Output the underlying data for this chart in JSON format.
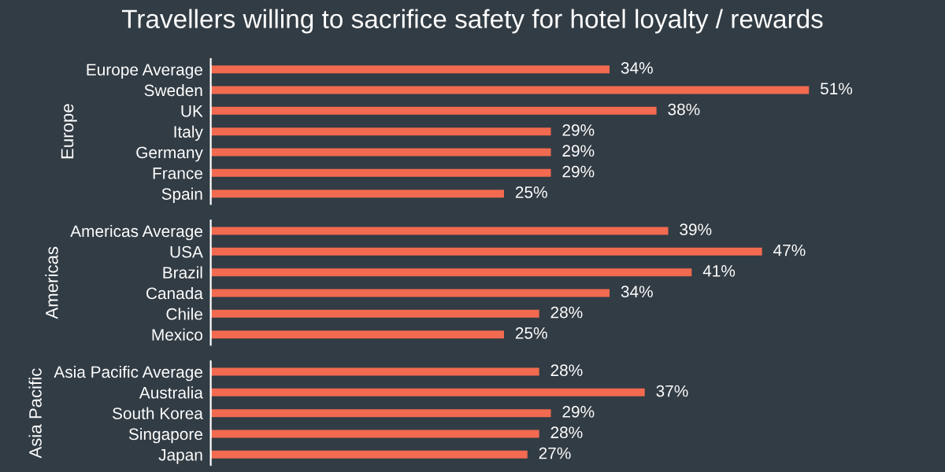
{
  "chart_data": [
    {
      "type": "bar",
      "orientation": "horizontal",
      "title": "Travellers willing to sacrifice safety for hotel loyalty / rewards",
      "ylabel": "Europe",
      "tick_labels": "y",
      "color": "#f26a50",
      "categories": [
        "Europe Average",
        "Sweden",
        "UK",
        "Italy",
        "Germany",
        "France",
        "Spain"
      ],
      "values": [
        34,
        51,
        38,
        29,
        29,
        29,
        25
      ],
      "value_labels": [
        "34%",
        "51%",
        "38%",
        "29%",
        "29%",
        "29%",
        "25%"
      ]
    },
    {
      "type": "bar",
      "orientation": "horizontal",
      "ylabel": "Americas",
      "tick_labels": "y",
      "color": "#f26a50",
      "categories": [
        "Americas Average",
        "USA",
        "Brazil",
        "Canada",
        "Chile",
        "Mexico"
      ],
      "values": [
        39,
        47,
        41,
        34,
        28,
        25
      ],
      "value_labels": [
        "39%",
        "47%",
        "41%",
        "34%",
        "28%",
        "25%"
      ]
    },
    {
      "type": "bar",
      "orientation": "horizontal",
      "ylabel": "Asia Pacific",
      "tick_labels": "y",
      "color": "#f26a50",
      "categories": [
        "Asia Pacific Average",
        "Australia",
        "South Korea",
        "Singapore",
        "Japan"
      ],
      "values": [
        28,
        37,
        29,
        28,
        27
      ],
      "value_labels": [
        "28%",
        "37%",
        "29%",
        "28%",
        "27%"
      ]
    }
  ]
}
